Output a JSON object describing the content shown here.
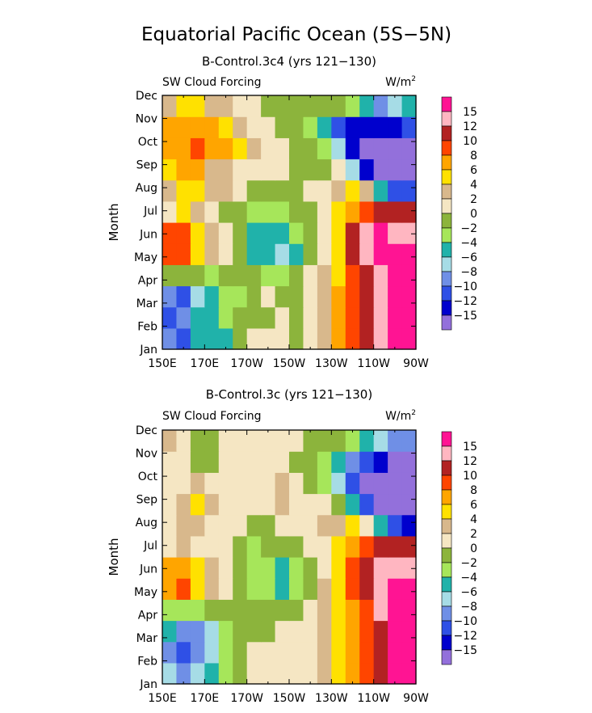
{
  "figure": {
    "title": "Equatorial Pacific Ocean (5S−5N)"
  },
  "palette": [
    "#9370db",
    "#0000cd",
    "#2f50e6",
    "#6f8fe6",
    "#a6dce6",
    "#20b2aa",
    "#a6e65a",
    "#8cb43c",
    "#f5e6c3",
    "#d8b88c",
    "#ffe100",
    "#ffa500",
    "#ff4500",
    "#b22222",
    "#ffb6c1",
    "#ff1493"
  ],
  "chart_data": [
    {
      "type": "heatmap",
      "subtitle": "B-Control.3c4 (yrs 121−130)",
      "left_label": "SW Cloud Forcing",
      "units_label": "W/m",
      "units_sup": "2",
      "ylabel": "Month",
      "x_ticks": [
        "150E",
        "170E",
        "170W",
        "150W",
        "130W",
        "110W",
        "90W"
      ],
      "y_ticks": [
        "Jan",
        "Feb",
        "Mar",
        "Apr",
        "May",
        "Jun",
        "Jul",
        "Aug",
        "Sep",
        "Oct",
        "Nov",
        "Dec"
      ],
      "colorbar_levels": [
        "15",
        "12",
        "10",
        "8",
        "6",
        "4",
        "2",
        "0",
        "−2",
        "−4",
        "−6",
        "−8",
        "−10",
        "−12",
        "−15"
      ],
      "grid": [
        [
          3,
          2,
          5,
          5,
          5,
          7,
          8,
          8,
          8,
          7,
          8,
          9,
          11,
          12,
          13,
          14,
          15,
          15
        ],
        [
          2,
          3,
          5,
          5,
          6,
          7,
          7,
          7,
          8,
          7,
          8,
          9,
          11,
          12,
          13,
          14,
          15,
          15
        ],
        [
          3,
          2,
          4,
          5,
          6,
          6,
          7,
          8,
          7,
          7,
          8,
          9,
          11,
          12,
          13,
          14,
          15,
          15
        ],
        [
          7,
          7,
          7,
          6,
          7,
          7,
          7,
          6,
          6,
          7,
          8,
          9,
          10,
          12,
          13,
          14,
          15,
          15
        ],
        [
          12,
          12,
          10,
          9,
          8,
          7,
          5,
          5,
          4,
          5,
          7,
          8,
          10,
          13,
          14,
          15,
          15,
          15
        ],
        [
          12,
          12,
          10,
          9,
          8,
          7,
          5,
          5,
          5,
          6,
          7,
          8,
          10,
          13,
          14,
          15,
          14,
          14
        ],
        [
          8,
          10,
          9,
          8,
          7,
          7,
          6,
          6,
          6,
          7,
          7,
          8,
          10,
          11,
          12,
          13,
          13,
          13
        ],
        [
          9,
          10,
          10,
          9,
          9,
          8,
          7,
          7,
          7,
          7,
          8,
          8,
          9,
          10,
          9,
          5,
          2,
          2
        ],
        [
          10,
          11,
          11,
          9,
          9,
          8,
          8,
          8,
          8,
          7,
          7,
          7,
          8,
          4,
          1,
          0,
          0,
          0
        ],
        [
          11,
          11,
          12,
          11,
          11,
          10,
          9,
          8,
          8,
          7,
          7,
          6,
          4,
          1,
          0,
          0,
          0,
          0
        ],
        [
          11,
          11,
          11,
          11,
          10,
          9,
          8,
          8,
          7,
          7,
          6,
          5,
          2,
          1,
          1,
          1,
          1,
          2
        ],
        [
          9,
          10,
          10,
          9,
          9,
          8,
          8,
          7,
          7,
          7,
          7,
          7,
          7,
          6,
          5,
          3,
          4,
          5
        ]
      ]
    },
    {
      "type": "heatmap",
      "subtitle": "B-Control.3c (yrs 121−130)",
      "left_label": "SW Cloud Forcing",
      "units_label": "W/m",
      "units_sup": "2",
      "ylabel": "Month",
      "x_ticks": [
        "150E",
        "170E",
        "170W",
        "150W",
        "130W",
        "110W",
        "90W"
      ],
      "y_ticks": [
        "Jan",
        "Feb",
        "Mar",
        "Apr",
        "May",
        "Jun",
        "Jul",
        "Aug",
        "Sep",
        "Oct",
        "Nov",
        "Dec"
      ],
      "colorbar_levels": [
        "15",
        "12",
        "10",
        "8",
        "6",
        "4",
        "2",
        "0",
        "−2",
        "−4",
        "−6",
        "−8",
        "−10",
        "−12",
        "−15"
      ],
      "grid": [
        [
          4,
          3,
          4,
          5,
          6,
          7,
          8,
          8,
          8,
          8,
          8,
          9,
          10,
          11,
          12,
          13,
          15,
          15
        ],
        [
          3,
          2,
          3,
          4,
          6,
          7,
          8,
          8,
          8,
          8,
          8,
          9,
          10,
          11,
          12,
          13,
          15,
          15
        ],
        [
          5,
          3,
          3,
          4,
          6,
          7,
          7,
          7,
          8,
          8,
          8,
          9,
          10,
          11,
          12,
          13,
          15,
          15
        ],
        [
          6,
          6,
          6,
          7,
          7,
          7,
          7,
          7,
          7,
          7,
          8,
          9,
          10,
          11,
          12,
          14,
          15,
          15
        ],
        [
          11,
          12,
          10,
          9,
          8,
          7,
          6,
          6,
          5,
          6,
          7,
          9,
          10,
          12,
          13,
          14,
          15,
          15
        ],
        [
          11,
          11,
          10,
          9,
          8,
          7,
          6,
          6,
          5,
          6,
          7,
          8,
          10,
          12,
          13,
          14,
          14,
          14
        ],
        [
          8,
          9,
          8,
          8,
          8,
          7,
          6,
          7,
          7,
          7,
          8,
          8,
          10,
          11,
          12,
          13,
          13,
          13
        ],
        [
          8,
          9,
          9,
          8,
          8,
          8,
          7,
          7,
          8,
          8,
          8,
          9,
          9,
          10,
          8,
          5,
          2,
          1
        ],
        [
          8,
          9,
          10,
          9,
          8,
          8,
          8,
          8,
          9,
          8,
          8,
          8,
          7,
          5,
          2,
          0,
          0,
          0
        ],
        [
          8,
          8,
          9,
          8,
          8,
          8,
          8,
          8,
          9,
          8,
          7,
          6,
          4,
          2,
          0,
          0,
          0,
          0
        ],
        [
          8,
          8,
          7,
          7,
          8,
          8,
          8,
          8,
          8,
          7,
          7,
          6,
          5,
          3,
          2,
          1,
          0,
          0
        ],
        [
          9,
          8,
          7,
          7,
          8,
          8,
          8,
          8,
          8,
          8,
          7,
          7,
          7,
          6,
          5,
          4,
          3,
          3
        ]
      ]
    }
  ]
}
